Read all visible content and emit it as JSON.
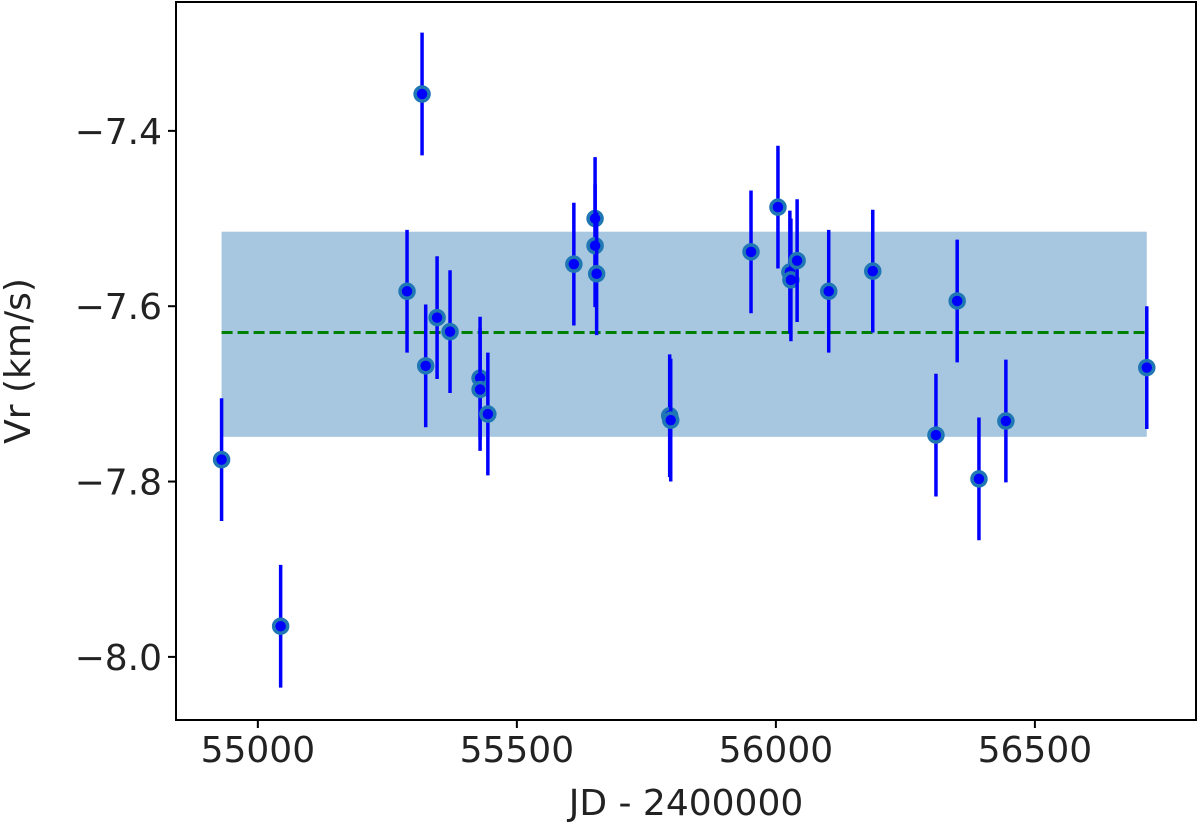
{
  "chart_data": {
    "type": "scatter",
    "x_label": "JD - 2400000",
    "y_label": "Vr (km/s)",
    "x": [
      54930,
      55044,
      55288,
      55317,
      55324,
      55346,
      55371,
      55429,
      55429,
      55444,
      55610,
      55651,
      55651,
      55654,
      55795,
      55797,
      55952,
      56004,
      56027,
      56029,
      56041,
      56102,
      56187,
      56309,
      56350,
      56392,
      56444,
      56716
    ],
    "values": [
      -7.775,
      -7.965,
      -7.583,
      -7.358,
      -7.668,
      -7.613,
      -7.629,
      -7.682,
      -7.695,
      -7.723,
      -7.552,
      -7.5,
      -7.531,
      -7.563,
      -7.725,
      -7.73,
      -7.538,
      -7.487,
      -7.561,
      -7.57,
      -7.548,
      -7.583,
      -7.56,
      -7.747,
      -7.594,
      -7.797,
      -7.731,
      -7.67
    ],
    "errors": [
      0.07,
      0.07,
      0.07,
      0.07,
      0.07,
      0.07,
      0.07,
      0.07,
      0.07,
      0.07,
      0.07,
      0.07,
      0.07,
      0.07,
      0.07,
      0.07,
      0.07,
      0.07,
      0.07,
      0.07,
      0.07,
      0.07,
      0.07,
      0.07,
      0.07,
      0.07,
      0.07,
      0.07
    ],
    "color": "#0000ff",
    "edge_color": "#1f77b4",
    "band": {
      "x": [
        54930,
        56716
      ],
      "y": [
        -7.749,
        -7.515
      ],
      "color": "#a7c7e1"
    },
    "mean_line": {
      "value": -7.63,
      "color": "#008000"
    },
    "xlim": [
      54842,
      56811
    ],
    "ylim": [
      -8.072,
      -7.253
    ],
    "xticks": [
      55000,
      55500,
      56000,
      56500
    ],
    "yticks": [
      {
        "value": -8.0,
        "label": "−8.0"
      },
      {
        "value": -7.8,
        "label": "−7.8"
      },
      {
        "value": -7.6,
        "label": "−7.6"
      },
      {
        "value": -7.4,
        "label": "−7.4"
      }
    ]
  }
}
